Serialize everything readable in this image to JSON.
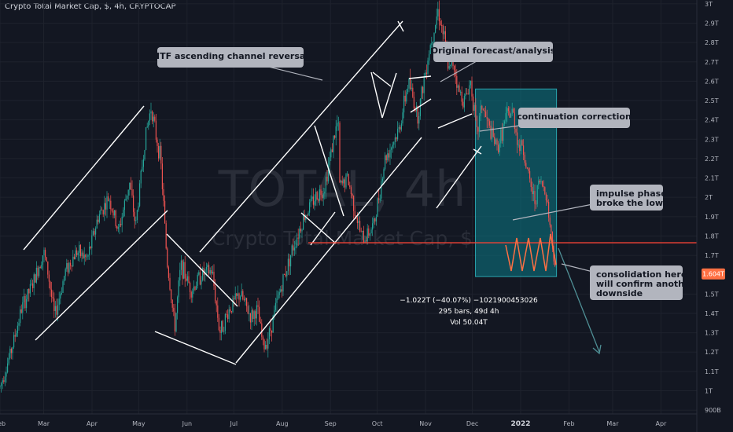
{
  "header": {
    "title": "Crypto Total Market Cap, $, 4h, CRYPTOCAP"
  },
  "watermark": {
    "symbol": "TOTAL, 4h",
    "name": "Crypto Total Market Cap, $"
  },
  "colors": {
    "background": "#131722",
    "up": "#26a69a",
    "down": "#ef5350",
    "measure": "#0b7a86",
    "level": "#f44336",
    "projection": "#ff7043",
    "arrow": "#4f8f95"
  },
  "chart_data": {
    "type": "candlestick",
    "title": "Crypto Total Market Cap, $, 4h, CRYPTOCAP",
    "y_unit": "USD (T = trillion)",
    "ylim": [
      0.88,
      3.02
    ],
    "y_ticks": [
      {
        "v": 3.0,
        "label": "3T"
      },
      {
        "v": 2.9,
        "label": "2.9T"
      },
      {
        "v": 2.8,
        "label": "2.8T"
      },
      {
        "v": 2.7,
        "label": "2.7T"
      },
      {
        "v": 2.6,
        "label": "2.6T"
      },
      {
        "v": 2.5,
        "label": "2.5T"
      },
      {
        "v": 2.4,
        "label": "2.4T"
      },
      {
        "v": 2.3,
        "label": "2.3T"
      },
      {
        "v": 2.2,
        "label": "2.2T"
      },
      {
        "v": 2.1,
        "label": "2.1T"
      },
      {
        "v": 2.0,
        "label": "2T"
      },
      {
        "v": 1.9,
        "label": "1.9T"
      },
      {
        "v": 1.8,
        "label": "1.8T"
      },
      {
        "v": 1.7,
        "label": "1.7T"
      },
      {
        "v": 1.5,
        "label": "1.5T"
      },
      {
        "v": 1.4,
        "label": "1.4T"
      },
      {
        "v": 1.3,
        "label": "1.3T"
      },
      {
        "v": 1.2,
        "label": "1.2T"
      },
      {
        "v": 1.1,
        "label": "1.1T"
      },
      {
        "v": 1.0,
        "label": "1T"
      },
      {
        "v": 0.9,
        "label": "900B"
      }
    ],
    "xlim": [
      "2021-02-01",
      "2022-04-24"
    ],
    "x_ticks": [
      {
        "date": "2021-02-01",
        "label": "Feb"
      },
      {
        "date": "2021-03-01",
        "label": "Mar"
      },
      {
        "date": "2021-04-01",
        "label": "Apr"
      },
      {
        "date": "2021-05-01",
        "label": "May"
      },
      {
        "date": "2021-06-01",
        "label": "Jun"
      },
      {
        "date": "2021-07-01",
        "label": "Jul"
      },
      {
        "date": "2021-08-01",
        "label": "Aug"
      },
      {
        "date": "2021-09-01",
        "label": "Sep"
      },
      {
        "date": "2021-10-01",
        "label": "Oct"
      },
      {
        "date": "2021-11-01",
        "label": "Nov"
      },
      {
        "date": "2021-12-01",
        "label": "Dec"
      },
      {
        "date": "2022-01-01",
        "label": "2022",
        "bold": true
      },
      {
        "date": "2022-02-01",
        "label": "Feb"
      },
      {
        "date": "2022-03-01",
        "label": "Mar"
      },
      {
        "date": "2022-04-01",
        "label": "Apr"
      }
    ],
    "price_path": [
      [
        "2021-02-01",
        1.02
      ],
      [
        "2021-02-08",
        1.2
      ],
      [
        "2021-02-15",
        1.43
      ],
      [
        "2021-02-22",
        1.55
      ],
      [
        "2021-03-01",
        1.72
      ],
      [
        "2021-03-04",
        1.6
      ],
      [
        "2021-03-08",
        1.38
      ],
      [
        "2021-03-15",
        1.62
      ],
      [
        "2021-03-22",
        1.72
      ],
      [
        "2021-03-29",
        1.68
      ],
      [
        "2021-04-05",
        1.9
      ],
      [
        "2021-04-12",
        2.0
      ],
      [
        "2021-04-18",
        1.82
      ],
      [
        "2021-04-25",
        2.08
      ],
      [
        "2021-04-29",
        1.85
      ],
      [
        "2021-05-05",
        2.3
      ],
      [
        "2021-05-09",
        2.47
      ],
      [
        "2021-05-12",
        2.32
      ],
      [
        "2021-05-15",
        2.2
      ],
      [
        "2021-05-17",
        1.95
      ],
      [
        "2021-05-19",
        1.68
      ],
      [
        "2021-05-21",
        1.55
      ],
      [
        "2021-05-24",
        1.32
      ],
      [
        "2021-05-28",
        1.65
      ],
      [
        "2021-06-04",
        1.52
      ],
      [
        "2021-06-10",
        1.6
      ],
      [
        "2021-06-17",
        1.62
      ],
      [
        "2021-06-22",
        1.3
      ],
      [
        "2021-06-28",
        1.42
      ],
      [
        "2021-07-05",
        1.5
      ],
      [
        "2021-07-12",
        1.38
      ],
      [
        "2021-07-16",
        1.42
      ],
      [
        "2021-07-20",
        1.22
      ],
      [
        "2021-07-24",
        1.3
      ],
      [
        "2021-07-30",
        1.5
      ],
      [
        "2021-08-07",
        1.72
      ],
      [
        "2021-08-15",
        1.9
      ],
      [
        "2021-08-22",
        2.0
      ],
      [
        "2021-08-28",
        2.05
      ],
      [
        "2021-09-03",
        2.3
      ],
      [
        "2021-09-06",
        2.4
      ],
      [
        "2021-09-07",
        2.05
      ],
      [
        "2021-09-12",
        2.1
      ],
      [
        "2021-09-20",
        1.82
      ],
      [
        "2021-09-22",
        1.78
      ],
      [
        "2021-09-29",
        1.86
      ],
      [
        "2021-10-06",
        2.2
      ],
      [
        "2021-10-15",
        2.35
      ],
      [
        "2021-10-21",
        2.6
      ],
      [
        "2021-10-27",
        2.42
      ],
      [
        "2021-11-03",
        2.75
      ],
      [
        "2021-11-09",
        2.97
      ],
      [
        "2021-11-13",
        2.82
      ],
      [
        "2021-11-16",
        2.65
      ],
      [
        "2021-11-19",
        2.7
      ],
      [
        "2021-11-22",
        2.55
      ],
      [
        "2021-11-26",
        2.5
      ],
      [
        "2021-11-30",
        2.6
      ],
      [
        "2021-12-04",
        2.32
      ],
      [
        "2021-12-07",
        2.48
      ],
      [
        "2021-12-12",
        2.35
      ],
      [
        "2021-12-17",
        2.25
      ],
      [
        "2021-12-23",
        2.42
      ],
      [
        "2021-12-27",
        2.44
      ],
      [
        "2021-12-31",
        2.25
      ],
      [
        "2022-01-02",
        2.28
      ],
      [
        "2022-01-06",
        2.1
      ],
      [
        "2022-01-10",
        1.98
      ],
      [
        "2022-01-13",
        2.08
      ],
      [
        "2022-01-17",
        2.04
      ],
      [
        "2022-01-21",
        1.78
      ],
      [
        "2022-01-24",
        1.6
      ]
    ],
    "current_price": {
      "value": 1.604,
      "label": "1.604T"
    },
    "horizontal_level": 1.765,
    "measure": {
      "from": "2021-12-03",
      "to": "2022-01-24",
      "top": 2.56,
      "bottom": 1.59,
      "line1": "−1.022T (−40.07%) −1021900453026",
      "line2": "295 bars, 49d 4h",
      "line3": "Vol 50.04T"
    },
    "annotations": [
      {
        "text": "HTF ascending channel reversal"
      },
      {
        "text": "Original forecast/analysis"
      },
      {
        "text": "continuation correction"
      },
      {
        "text": "impulse phase\nbroke the lows"
      },
      {
        "text": "consolidation here\nwill confirm another\ndownside"
      }
    ]
  }
}
